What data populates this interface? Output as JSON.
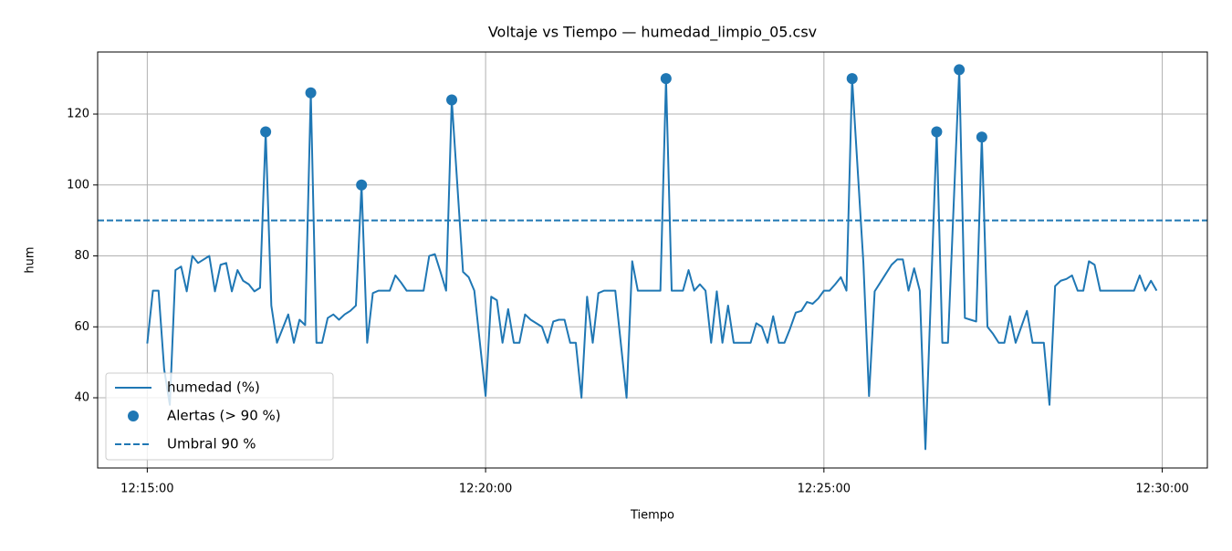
{
  "chart_data": {
    "type": "line",
    "title": "Voltaje vs Tiempo — humedad_limpio_05.csv",
    "x_label": "Tiempo",
    "y_label": "hum",
    "grid": true,
    "legend_loc": "lower left",
    "xlim": [
      "12:14:16",
      "12:30:40"
    ],
    "xticks": [
      "12:15:00",
      "12:20:00",
      "12:25:00",
      "12:30:00"
    ],
    "ylim": [
      20.2,
      137.5
    ],
    "yticks": [
      40,
      60,
      80,
      100,
      120
    ],
    "series": [
      {
        "name": "humedad (%)",
        "type": "line",
        "color": "#1f77b4",
        "x": [
          "12:15:00",
          "12:15:05",
          "12:15:10",
          "12:15:15",
          "12:15:20",
          "12:15:25",
          "12:15:30",
          "12:15:35",
          "12:15:40",
          "12:15:45",
          "12:15:50",
          "12:15:55",
          "12:16:00",
          "12:16:05",
          "12:16:10",
          "12:16:15",
          "12:16:20",
          "12:16:25",
          "12:16:30",
          "12:16:35",
          "12:16:40",
          "12:16:45",
          "12:16:50",
          "12:16:55",
          "12:17:00",
          "12:17:05",
          "12:17:10",
          "12:17:15",
          "12:17:20",
          "12:17:25",
          "12:17:30",
          "12:17:35",
          "12:17:40",
          "12:17:45",
          "12:17:50",
          "12:17:55",
          "12:18:00",
          "12:18:05",
          "12:18:10",
          "12:18:15",
          "12:18:20",
          "12:18:25",
          "12:18:30",
          "12:18:35",
          "12:18:40",
          "12:18:45",
          "12:18:50",
          "12:18:55",
          "12:19:00",
          "12:19:05",
          "12:19:10",
          "12:19:15",
          "12:19:20",
          "12:19:25",
          "12:19:30",
          "12:19:40",
          "12:19:45",
          "12:19:50",
          "12:20:00",
          "12:20:05",
          "12:20:10",
          "12:20:15",
          "12:20:20",
          "12:20:25",
          "12:20:30",
          "12:20:35",
          "12:20:40",
          "12:20:45",
          "12:20:50",
          "12:20:55",
          "12:21:00",
          "12:21:05",
          "12:21:10",
          "12:21:15",
          "12:21:20",
          "12:21:25",
          "12:21:30",
          "12:21:35",
          "12:21:40",
          "12:21:45",
          "12:21:50",
          "12:21:55",
          "12:22:05",
          "12:22:10",
          "12:22:15",
          "12:22:20",
          "12:22:25",
          "12:22:30",
          "12:22:35",
          "12:22:40",
          "12:22:45",
          "12:22:50",
          "12:22:55",
          "12:23:00",
          "12:23:05",
          "12:23:10",
          "12:23:15",
          "12:23:20",
          "12:23:25",
          "12:23:30",
          "12:23:35",
          "12:23:40",
          "12:23:45",
          "12:23:50",
          "12:23:55",
          "12:24:00",
          "12:24:05",
          "12:24:10",
          "12:24:15",
          "12:24:20",
          "12:24:25",
          "12:24:30",
          "12:24:35",
          "12:24:40",
          "12:24:45",
          "12:24:50",
          "12:24:55",
          "12:25:00",
          "12:25:05",
          "12:25:10",
          "12:25:15",
          "12:25:20",
          "12:25:25",
          "12:25:35",
          "12:25:40",
          "12:25:45",
          "12:25:50",
          "12:25:55",
          "12:26:00",
          "12:26:05",
          "12:26:10",
          "12:26:15",
          "12:26:20",
          "12:26:25",
          "12:26:30",
          "12:26:40",
          "12:26:45",
          "12:26:50",
          "12:27:00",
          "12:27:05",
          "12:27:10",
          "12:27:15",
          "12:27:20",
          "12:27:25",
          "12:27:30",
          "12:27:35",
          "12:27:40",
          "12:27:45",
          "12:27:50",
          "12:27:55",
          "12:28:00",
          "12:28:05",
          "12:28:10",
          "12:28:15",
          "12:28:20",
          "12:28:25",
          "12:28:30",
          "12:28:35",
          "12:28:40",
          "12:28:45",
          "12:28:50",
          "12:28:55",
          "12:29:00",
          "12:29:05",
          "12:29:10",
          "12:29:15",
          "12:29:20",
          "12:29:25",
          "12:29:30",
          "12:29:35",
          "12:29:40",
          "12:29:45",
          "12:29:50",
          "12:29:55"
        ],
        "values": [
          55.3,
          70.2,
          70.2,
          48,
          38,
          76,
          77,
          70,
          80,
          78,
          79,
          80,
          70,
          77.5,
          78,
          70,
          76,
          73,
          72,
          70,
          71,
          115,
          66,
          55.5,
          59.5,
          63.5,
          55.5,
          62,
          60.5,
          126,
          55.5,
          55.5,
          62.5,
          63.5,
          62,
          63.5,
          64.5,
          66,
          100,
          55.5,
          69.5,
          70.2,
          70.2,
          70.2,
          74.5,
          72.5,
          70.2,
          70.2,
          70.2,
          70.2,
          80,
          80.5,
          75.5,
          70.2,
          124,
          75.5,
          74,
          70.2,
          40.5,
          68.5,
          67.5,
          55.5,
          65,
          55.5,
          55.5,
          63.5,
          62,
          61,
          60,
          55.5,
          61.5,
          62,
          62,
          55.5,
          55.5,
          40,
          68.5,
          55.5,
          69.5,
          70.2,
          70.2,
          70.2,
          40,
          78.5,
          70.2,
          70.2,
          70.2,
          70.2,
          70.2,
          130,
          70.2,
          70.2,
          70.2,
          76,
          70.2,
          72,
          70.2,
          55.5,
          70,
          55.5,
          66,
          55.5,
          55.5,
          55.5,
          55.5,
          61,
          60,
          55.5,
          63,
          55.5,
          55.5,
          59.5,
          64,
          64.5,
          67,
          66.5,
          68,
          70.2,
          70.2,
          72,
          74,
          70.2,
          130,
          78,
          40.5,
          70,
          72.5,
          75,
          77.5,
          79,
          79,
          70.2,
          76.5,
          70.2,
          25.5,
          115,
          55.5,
          55.5,
          132.5,
          62.5,
          62,
          61.5,
          113.5,
          60,
          58,
          55.5,
          55.5,
          63,
          55.5,
          60,
          64.5,
          55.5,
          55.5,
          55.5,
          38,
          71.5,
          73,
          73.5,
          74.5,
          70.2,
          70.2,
          78.5,
          77.5,
          70.2,
          70.2,
          70.2,
          70.2,
          70.2,
          70.2,
          70.2,
          74.5,
          70.2,
          73,
          70.2
        ]
      },
      {
        "name": "Alertas (> 90 %)",
        "type": "scatter",
        "color": "#1f77b4",
        "x": [
          "12:16:45",
          "12:17:25",
          "12:18:10",
          "12:19:30",
          "12:22:40",
          "12:25:25",
          "12:26:40",
          "12:27:00",
          "12:27:20"
        ],
        "values": [
          115,
          126,
          100,
          124,
          130,
          130,
          115,
          132.5,
          113.5
        ]
      }
    ],
    "threshold": {
      "name": "Umbral 90 %",
      "value": 90,
      "color": "#1f77b4"
    }
  }
}
